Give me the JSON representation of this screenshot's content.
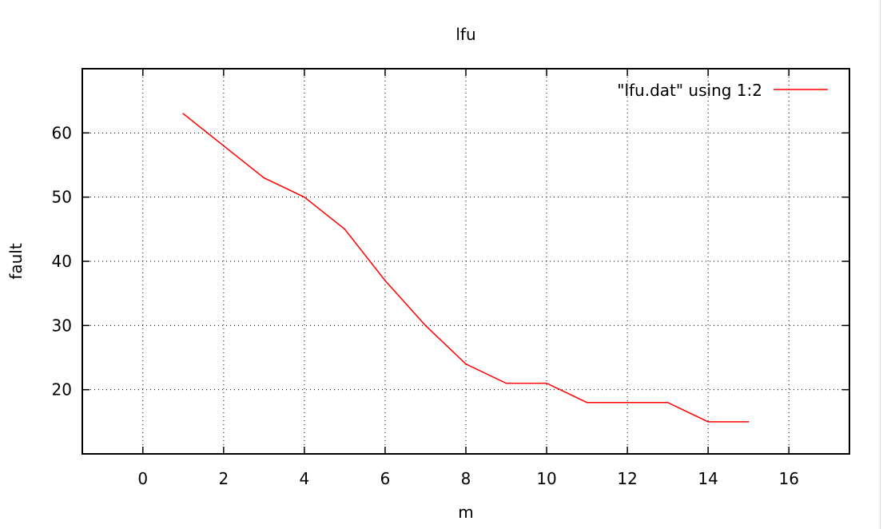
{
  "chart_data": {
    "type": "line",
    "title": "lfu",
    "xlabel": "m",
    "ylabel": "fault",
    "xlim": [
      -1.5,
      17.5
    ],
    "ylim": [
      10,
      70
    ],
    "xticks": [
      "0",
      "2",
      "4",
      "6",
      "8",
      "10",
      "12",
      "14",
      "16"
    ],
    "yticks": [
      "20",
      "30",
      "40",
      "50",
      "60"
    ],
    "grid": true,
    "legend": "top-right",
    "series": [
      {
        "name": "\"lfu.dat\" using 1:2",
        "color": "#ff0000",
        "x": [
          1,
          2,
          3,
          4,
          5,
          6,
          7,
          8,
          9,
          10,
          11,
          12,
          13,
          14,
          15
        ],
        "y": [
          63,
          58,
          53,
          50,
          45,
          37,
          30,
          24,
          21,
          21,
          18,
          18,
          18,
          15,
          15
        ]
      }
    ]
  }
}
